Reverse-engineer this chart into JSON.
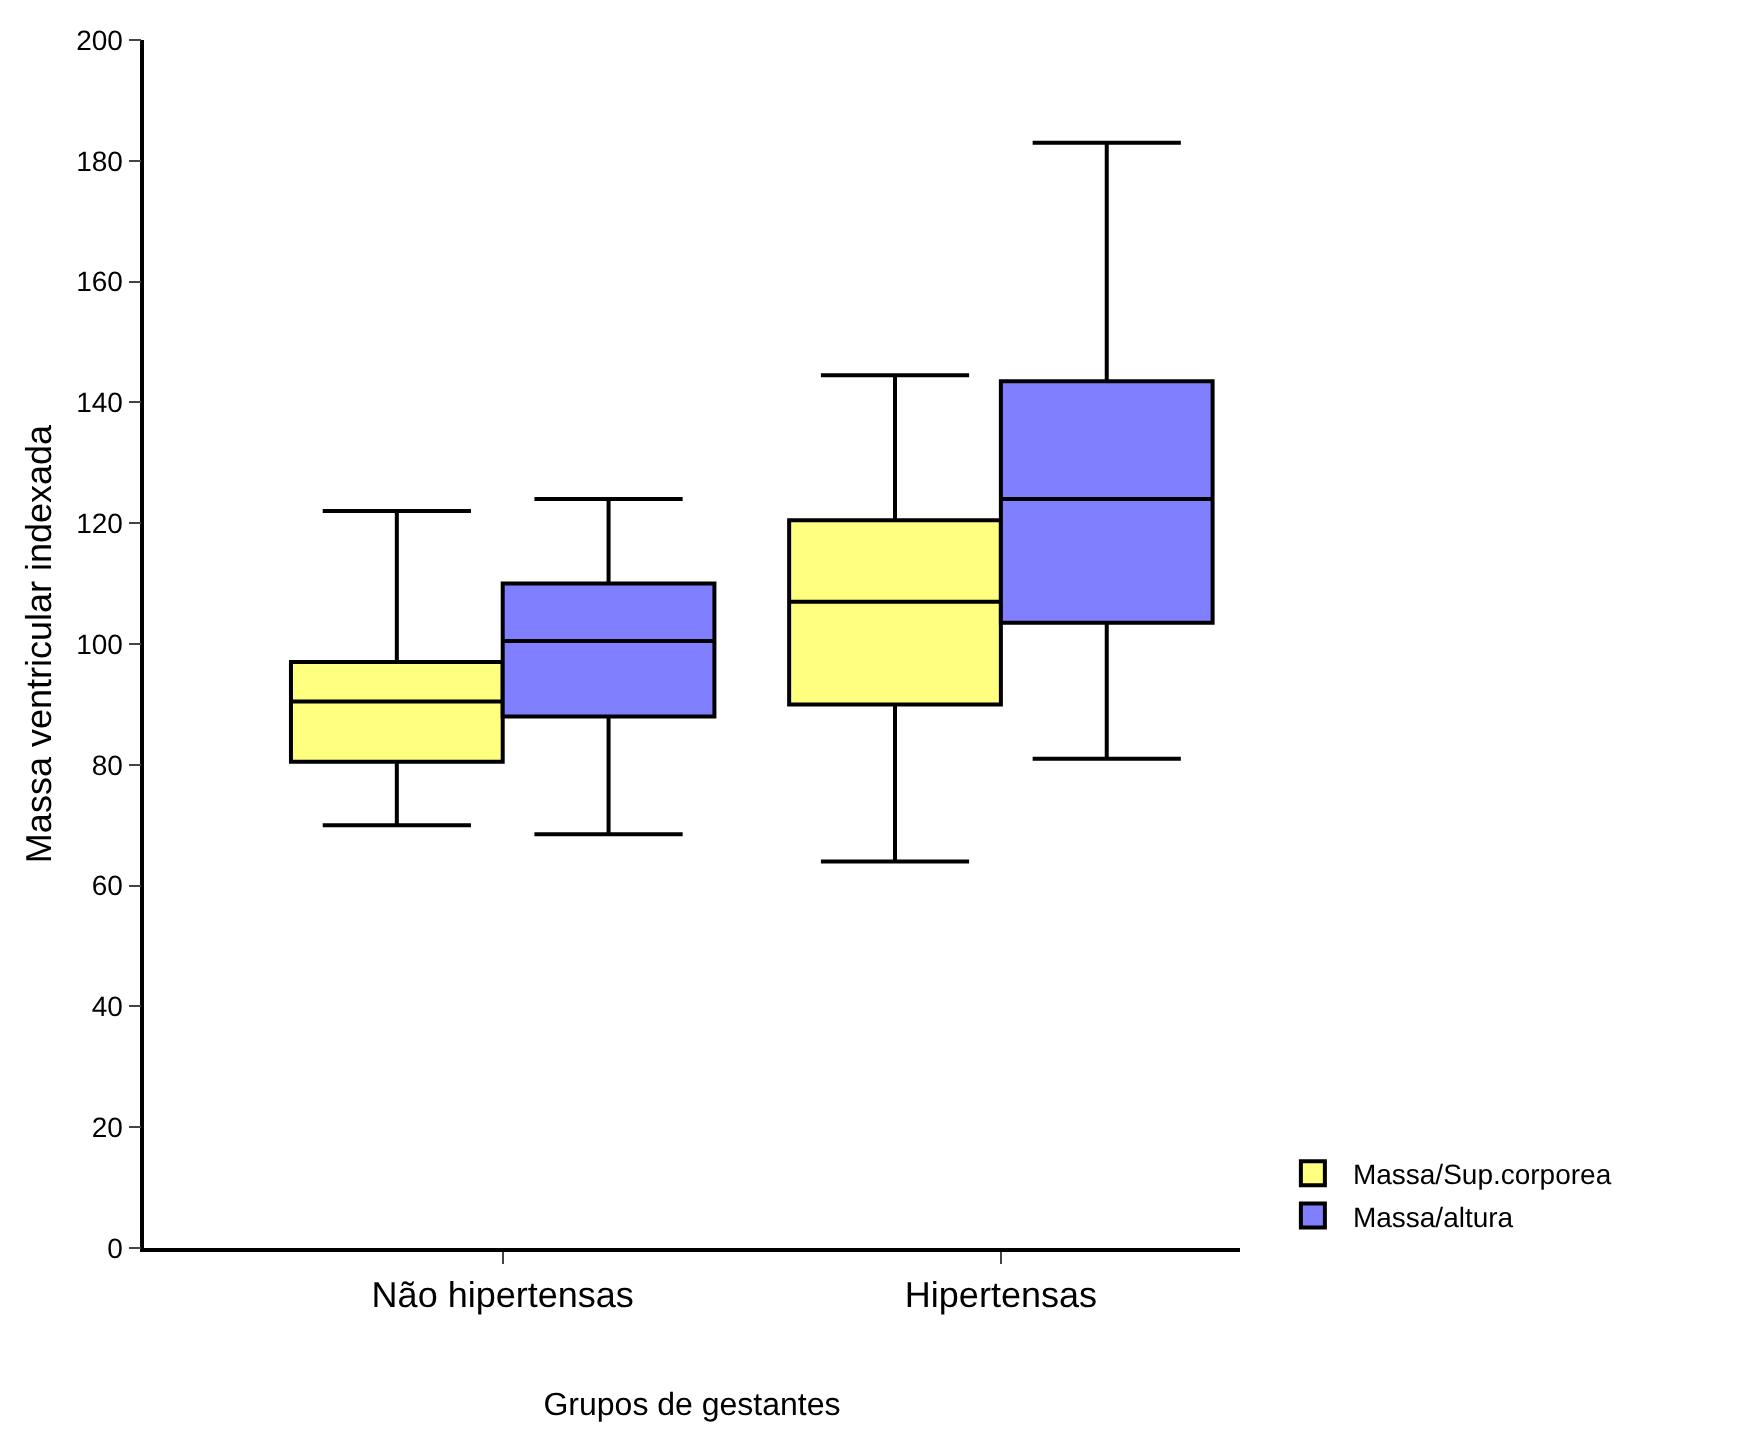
{
  "chart_data": {
    "type": "box",
    "xlabel": "Grupos de gestantes",
    "ylabel": "Massa ventricular indexada",
    "categories": [
      "Não hipertensas",
      "Hipertensas"
    ],
    "ylim": [
      0,
      200
    ],
    "yticks": [
      0,
      20,
      40,
      60,
      80,
      100,
      120,
      140,
      160,
      180,
      200
    ],
    "grid": false,
    "legend": "bottom right",
    "series": [
      {
        "name": "Massa/Sup.corporea",
        "color": "#ffff80",
        "boxes": [
          {
            "low": 70,
            "q1": 80.5,
            "median": 90.5,
            "q3": 97,
            "high": 122
          },
          {
            "low": 64,
            "q1": 90,
            "median": 107,
            "q3": 120.5,
            "high": 144.5
          }
        ]
      },
      {
        "name": "Massa/altura",
        "color": "#8080ff",
        "boxes": [
          {
            "low": 68.5,
            "q1": 88,
            "median": 100.5,
            "q3": 110,
            "high": 124
          },
          {
            "low": 81,
            "q1": 103.5,
            "median": 124,
            "q3": 143.5,
            "high": 183
          }
        ]
      }
    ]
  }
}
